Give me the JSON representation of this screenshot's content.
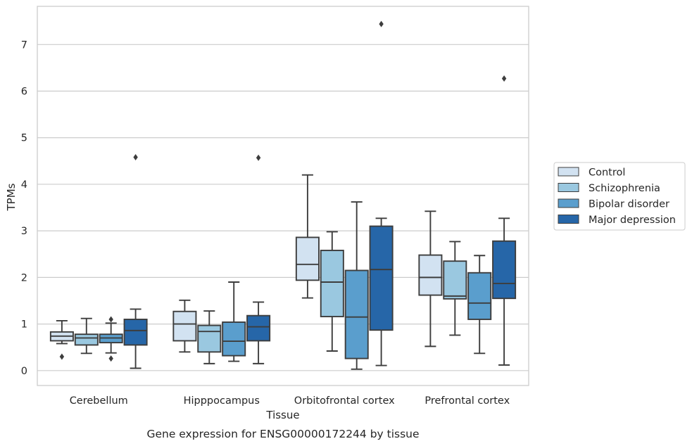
{
  "chart_data": {
    "type": "box",
    "title": "",
    "caption": "Gene expression for ENSG00000172244 by tissue",
    "xlabel": "Tissue",
    "ylabel": "TPMs",
    "ylim": [
      -0.32,
      7.82
    ],
    "yticks": [
      0,
      1,
      2,
      3,
      4,
      5,
      6,
      7
    ],
    "grid": "y",
    "legend_position": "right",
    "categories": [
      "Cerebellum",
      "Hipppocampus",
      "Orbitofrontal cortex",
      "Prefrontal cortex"
    ],
    "series": [
      {
        "name": "Control",
        "color": "#d2e2f1",
        "boxes": [
          {
            "whislo": 0.58,
            "q1": 0.64,
            "med": 0.74,
            "q3": 0.83,
            "whishi": 1.07,
            "fliers": [
              0.3
            ]
          },
          {
            "whislo": 0.4,
            "q1": 0.64,
            "med": 1.0,
            "q3": 1.27,
            "whishi": 1.51,
            "fliers": []
          },
          {
            "whislo": 1.56,
            "q1": 1.94,
            "med": 2.28,
            "q3": 2.86,
            "whishi": 4.2,
            "fliers": []
          },
          {
            "whislo": 0.52,
            "q1": 1.62,
            "med": 2.0,
            "q3": 2.48,
            "whishi": 3.42,
            "fliers": []
          }
        ]
      },
      {
        "name": "Schizophrenia",
        "color": "#9ac8e0",
        "boxes": [
          {
            "whislo": 0.37,
            "q1": 0.55,
            "med": 0.7,
            "q3": 0.78,
            "whishi": 1.12,
            "fliers": []
          },
          {
            "whislo": 0.15,
            "q1": 0.4,
            "med": 0.84,
            "q3": 0.97,
            "whishi": 1.28,
            "fliers": []
          },
          {
            "whislo": 0.42,
            "q1": 1.16,
            "med": 1.9,
            "q3": 2.58,
            "whishi": 2.98,
            "fliers": []
          },
          {
            "whislo": 0.76,
            "q1": 1.54,
            "med": 1.6,
            "q3": 2.35,
            "whishi": 2.77,
            "fliers": []
          }
        ]
      },
      {
        "name": "Bipolar disorder",
        "color": "#5a9ecd",
        "boxes": [
          {
            "whislo": 0.38,
            "q1": 0.6,
            "med": 0.7,
            "q3": 0.78,
            "whishi": 1.02,
            "fliers": [
              1.1,
              0.26
            ]
          },
          {
            "whislo": 0.2,
            "q1": 0.32,
            "med": 0.63,
            "q3": 1.04,
            "whishi": 1.9,
            "fliers": []
          },
          {
            "whislo": 0.03,
            "q1": 0.26,
            "med": 1.15,
            "q3": 2.15,
            "whishi": 3.62,
            "fliers": []
          },
          {
            "whislo": 0.37,
            "q1": 1.1,
            "med": 1.45,
            "q3": 2.1,
            "whishi": 2.47,
            "fliers": []
          }
        ]
      },
      {
        "name": "Major depression",
        "color": "#2666a8",
        "boxes": [
          {
            "whislo": 0.05,
            "q1": 0.55,
            "med": 0.86,
            "q3": 1.1,
            "whishi": 1.32,
            "fliers": [
              4.58
            ]
          },
          {
            "whislo": 0.15,
            "q1": 0.64,
            "med": 0.94,
            "q3": 1.18,
            "whishi": 1.47,
            "fliers": [
              4.57
            ]
          },
          {
            "whislo": 0.11,
            "q1": 0.87,
            "med": 2.17,
            "q3": 3.1,
            "whishi": 3.27,
            "fliers": [
              7.44
            ]
          },
          {
            "whislo": 0.12,
            "q1": 1.55,
            "med": 1.87,
            "q3": 2.78,
            "whishi": 3.27,
            "fliers": [
              6.27
            ]
          }
        ]
      }
    ]
  }
}
